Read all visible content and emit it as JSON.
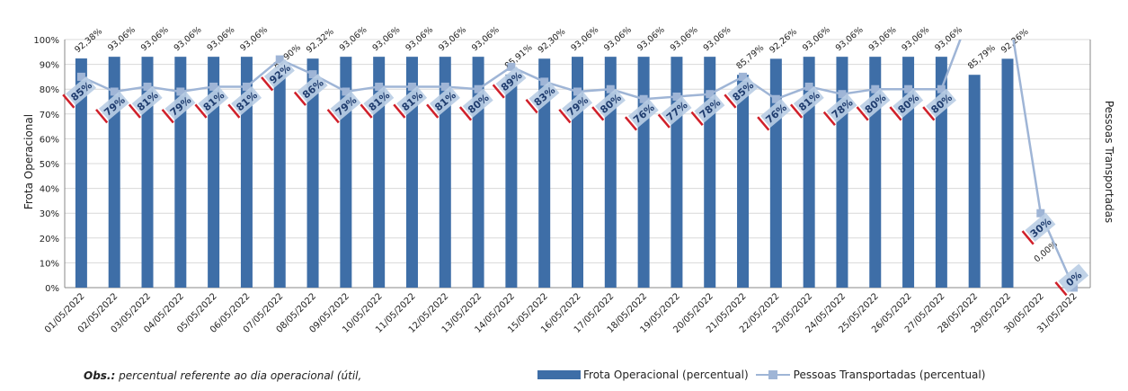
{
  "chart_data": {
    "type": "bar",
    "categories": [
      "01/05/2022",
      "02/05/2022",
      "03/05/2022",
      "04/05/2022",
      "05/05/2022",
      "06/05/2022",
      "07/05/2022",
      "08/05/2022",
      "09/05/2022",
      "10/05/2022",
      "11/05/2022",
      "12/05/2022",
      "13/05/2022",
      "14/05/2022",
      "15/05/2022",
      "16/05/2022",
      "17/05/2022",
      "18/05/2022",
      "19/05/2022",
      "20/05/2022",
      "21/05/2022",
      "22/05/2022",
      "23/05/2022",
      "24/05/2022",
      "25/05/2022",
      "26/05/2022",
      "27/05/2022",
      "28/05/2022",
      "29/05/2022",
      "30/05/2022",
      "31/05/2022"
    ],
    "series": [
      {
        "name": "Frota Operacional (percentual)",
        "type": "bar",
        "axis": "left",
        "color": "#3e6ea7",
        "values": [
          92.38,
          93.06,
          93.06,
          93.06,
          93.06,
          93.06,
          85.9,
          92.32,
          93.06,
          93.06,
          93.06,
          93.06,
          93.06,
          85.91,
          92.3,
          93.06,
          93.06,
          93.06,
          93.06,
          93.06,
          85.79,
          92.26,
          93.06,
          93.06,
          93.06,
          93.06,
          93.06,
          85.79,
          92.26,
          0,
          0
        ],
        "labels": [
          "92,38%",
          "93,06%",
          "93,06%",
          "93,06%",
          "93,06%",
          "93,06%",
          "85,90%",
          "92,32%",
          "93,06%",
          "93,06%",
          "93,06%",
          "93,06%",
          "93,06%",
          "85,91%",
          "92,30%",
          "93,06%",
          "93,06%",
          "93,06%",
          "93,06%",
          "93,06%",
          "85,79%",
          "92,26%",
          "93,06%",
          "93,06%",
          "93,06%",
          "93,06%",
          "93,06%",
          "85,79%",
          "92,26%",
          "0,00%",
          ""
        ]
      },
      {
        "name": "Pessoas Transportadas (percentual)",
        "type": "line",
        "axis": "right",
        "color": "#9fb5d6",
        "values": [
          85,
          79,
          81,
          79,
          81,
          81,
          92,
          86,
          79,
          81,
          81,
          81,
          80,
          89,
          83,
          79,
          80,
          76,
          77,
          78,
          85,
          76,
          81,
          78,
          80,
          80,
          80,
          115,
          115,
          30,
          0
        ],
        "labels": [
          "85%",
          "79%",
          "81%",
          "79%",
          "81%",
          "81%",
          "92%",
          "86%",
          "79%",
          "81%",
          "81%",
          "81%",
          "80%",
          "89%",
          "83%",
          "79%",
          "80%",
          "76%",
          "77%",
          "78%",
          "85%",
          "76%",
          "81%",
          "78%",
          "80%",
          "80%",
          "80%",
          "",
          "",
          "30%",
          "0%"
        ]
      }
    ],
    "ylabel": "Frota Operacional",
    "y2label": "Pessoas Transportadas",
    "ylim": [
      0,
      100
    ],
    "yticks": [
      "0%",
      "10%",
      "20%",
      "30%",
      "40%",
      "50%",
      "60%",
      "70%",
      "80%",
      "90%",
      "100%"
    ],
    "grid": true,
    "legend_position": "bottom-right"
  },
  "note": {
    "bold": "Obs.:",
    "text": " percentual referente ao dia operacional (útil,"
  },
  "colors": {
    "bar": "#3e6ea7",
    "line": "#9fb5d6",
    "grid": "#d8d8d8",
    "label_box": "#b9cde4",
    "strike": "#d0202a"
  }
}
